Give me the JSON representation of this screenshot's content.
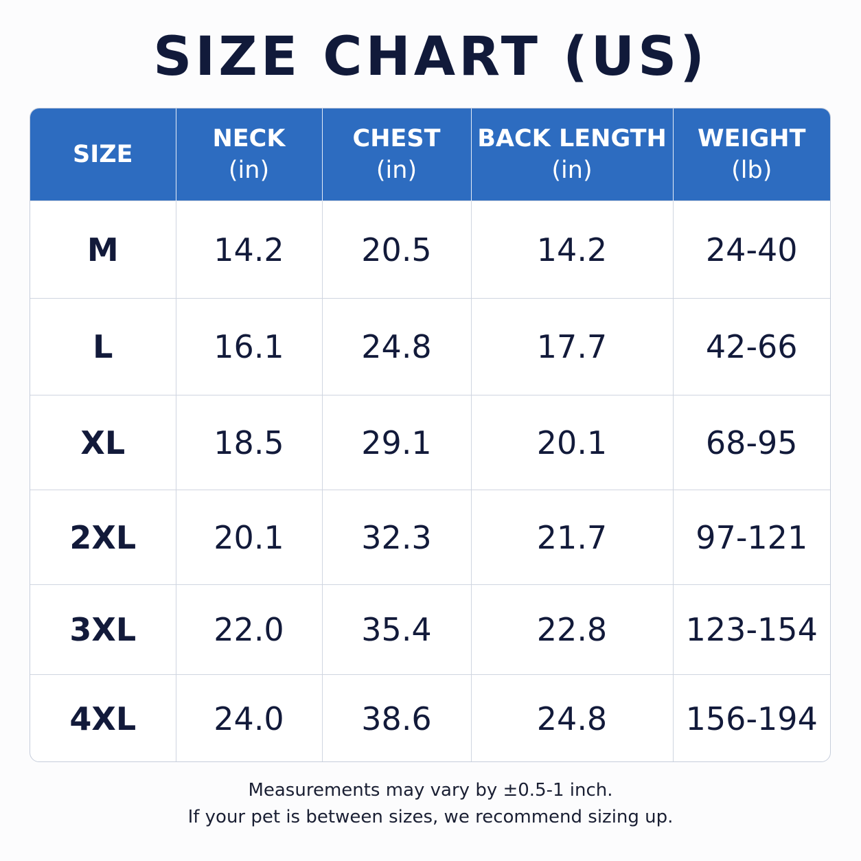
{
  "title": "SIZE CHART (US)",
  "table": {
    "header": [
      {
        "name": "SIZE"
      },
      {
        "name": "NECK",
        "unit": "(in)"
      },
      {
        "name": "CHEST",
        "unit": "(in)"
      },
      {
        "name": "BACK LENGTH",
        "unit": "(in)"
      },
      {
        "name": "WEIGHT",
        "unit": "(lb)"
      }
    ],
    "rows": [
      [
        "M",
        "14.2",
        "20.5",
        "14.2",
        "24-40"
      ],
      [
        "L",
        "16.1",
        "24.8",
        "17.7",
        "42-66"
      ],
      [
        "XL",
        "18.5",
        "29.1",
        "20.1",
        "68-95"
      ],
      [
        "2XL",
        "20.1",
        "32.3",
        "21.7",
        "97-121"
      ],
      [
        "3XL",
        "22.0",
        "35.4",
        "22.8",
        "123-154"
      ],
      [
        "4XL",
        "24.0",
        "38.6",
        "24.8",
        "156-194"
      ]
    ]
  },
  "notes": [
    "Measurements may vary by ±0.5-1 inch.",
    "If your pet is between sizes, we recommend sizing up."
  ]
}
